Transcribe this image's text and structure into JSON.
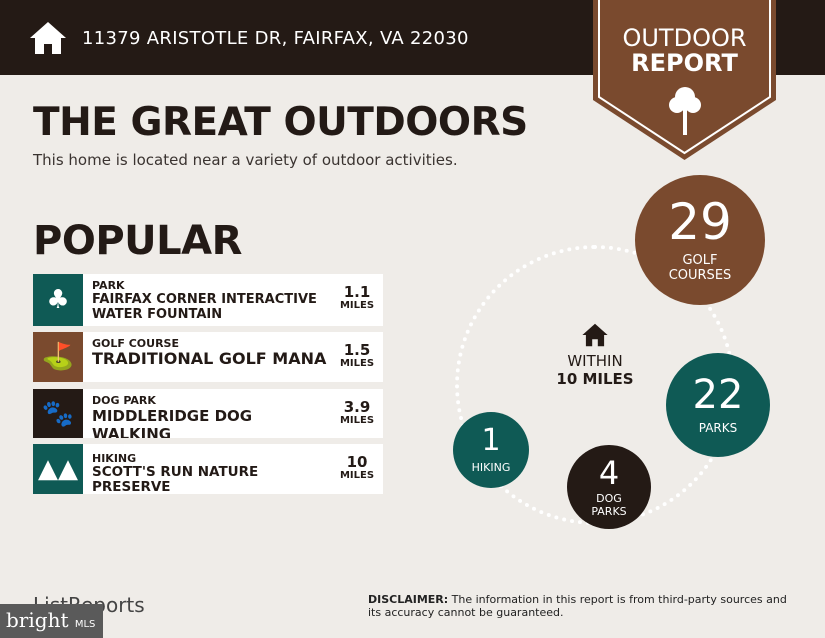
{
  "header": {
    "address": "11379 ARISTOTLE DR, FAIRFAX, VA 22030",
    "badge_line1": "OUTDOOR",
    "badge_line2": "REPORT"
  },
  "main": {
    "title": "THE GREAT OUTDOORS",
    "subtitle": "This home is located near a variety of outdoor activities.",
    "popular_heading": "POPULAR"
  },
  "popular": [
    {
      "category": "PARK",
      "name": "FAIRFAX CORNER INTERACTIVE WATER FOUNTAIN",
      "distance": "1.1",
      "unit": "MILES",
      "icon": "park-icon",
      "color": "#0f5a55"
    },
    {
      "category": "GOLF COURSE",
      "name": "TRADITIONAL GOLF MANA",
      "distance": "1.5",
      "unit": "MILES",
      "icon": "golf-bag-icon",
      "color": "#7a4a2e"
    },
    {
      "category": "DOG PARK",
      "name": "MIDDLERIDGE DOG WALKING",
      "distance": "3.9",
      "unit": "MILES",
      "icon": "paw-icon",
      "color": "#241a15"
    },
    {
      "category": "HIKING",
      "name": "SCOTT'S RUN NATURE PRESERVE",
      "distance": "10",
      "unit": "MILES",
      "icon": "trees-icon",
      "color": "#0f5a55"
    }
  ],
  "summary": {
    "within_label": "WITHIN",
    "radius": "10 MILES",
    "golf": {
      "count": "29",
      "label1": "GOLF",
      "label2": "COURSES",
      "color": "#7a4a2e"
    },
    "parks": {
      "count": "22",
      "label": "PARKS",
      "color": "#0f5a55"
    },
    "dog_parks": {
      "count": "4",
      "label1": "DOG",
      "label2": "PARKS",
      "color": "#241a15"
    },
    "hiking": {
      "count": "1",
      "label": "HIKING",
      "color": "#0f5a55"
    }
  },
  "footer": {
    "logo": "ListReports",
    "watermark": "bright",
    "watermark_suffix": "MLS",
    "disclaimer_label": "DISCLAIMER:",
    "disclaimer_text": " The information in this report is from third-party sources and its accuracy cannot be guaranteed."
  }
}
